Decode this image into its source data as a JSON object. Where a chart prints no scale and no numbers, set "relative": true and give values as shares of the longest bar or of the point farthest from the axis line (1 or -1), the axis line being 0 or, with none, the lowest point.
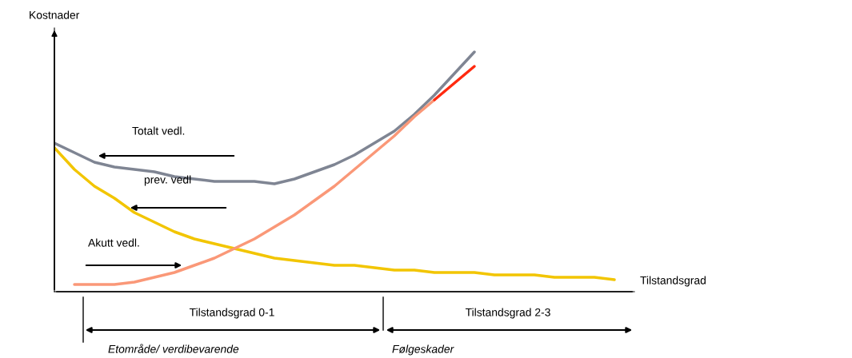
{
  "chart_data": {
    "type": "line",
    "relative": true,
    "xlabel": "Tilstandsgrad",
    "ylabel": "Kostnader",
    "categories": [
      null,
      null,
      null,
      null,
      null,
      null,
      null,
      null,
      null,
      null,
      null,
      null,
      null,
      null,
      null,
      null,
      null,
      null,
      null,
      null,
      null,
      null,
      null,
      null,
      null,
      null,
      null,
      null,
      null,
      null
    ],
    "series": [
      {
        "color": "#7f8593",
        "values": [
          0.62,
          0.58,
          0.54,
          0.52,
          0.51,
          0.5,
          0.48,
          0.47,
          0.46,
          0.46,
          0.46,
          0.45,
          0.47,
          0.5,
          0.53,
          0.57,
          0.62,
          0.67,
          0.74,
          0.82,
          0.91,
          1,
          null,
          null,
          null,
          null,
          null,
          null,
          null,
          null
        ]
      },
      {
        "color": "#f2c500",
        "values": [
          0.6,
          0.51,
          0.44,
          0.39,
          0.33,
          0.29,
          0.25,
          0.22,
          0.2,
          0.18,
          0.16,
          0.14,
          0.13,
          0.12,
          0.11,
          0.11,
          0.1,
          0.09,
          0.09,
          0.08,
          0.08,
          0.08,
          0.07,
          0.07,
          0.07,
          0.06,
          0.06,
          0.06,
          0.05,
          null
        ]
      },
      {
        "color": "#fa9878",
        "values": [
          null,
          0.03,
          0.03,
          0.03,
          0.04,
          0.06,
          0.08,
          0.11,
          0.14,
          0.18,
          0.22,
          0.27,
          0.32,
          0.38,
          0.44,
          0.51,
          0.58,
          0.65,
          0.73,
          0.8,
          null,
          null,
          null,
          null,
          null,
          null,
          null,
          null,
          null,
          null
        ]
      },
      {
        "color": "#ff2a10",
        "values": [
          null,
          null,
          null,
          null,
          null,
          null,
          null,
          null,
          null,
          null,
          null,
          null,
          null,
          null,
          null,
          null,
          null,
          null,
          null,
          0.8,
          0.87,
          0.94,
          null,
          null,
          null,
          null,
          null,
          null,
          null,
          null
        ]
      }
    ],
    "annotations": [
      "Totalt vedl.",
      "prev. vedl",
      "Akutt vedl.",
      "Tilstandsgrad 0-1",
      "Tilstandsgrad 2-3",
      "Etområde/ verdibevarende",
      "Følgeskader"
    ],
    "legend": false
  }
}
